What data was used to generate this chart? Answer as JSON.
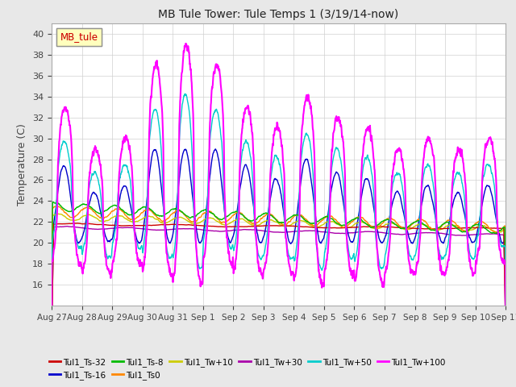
{
  "title": "MB Tule Tower: Tule Temps 1 (3/19/14-now)",
  "ylabel": "Temperature (C)",
  "ylim": [
    14,
    41
  ],
  "yticks": [
    16,
    18,
    20,
    22,
    24,
    26,
    28,
    30,
    32,
    34,
    36,
    38,
    40
  ],
  "date_labels": [
    "Aug 27",
    "Aug 28",
    "Aug 29",
    "Aug 30",
    "Aug 31",
    "Sep 1",
    "Sep 2",
    "Sep 3",
    "Sep 4",
    "Sep 5",
    "Sep 6",
    "Sep 7",
    "Sep 8",
    "Sep 9",
    "Sep 10",
    "Sep 11"
  ],
  "legend_label": "MB_tule",
  "series_order": [
    "Tul1_Ts-32",
    "Tul1_Ts-16",
    "Tul1_Ts-8",
    "Tul1_Ts0",
    "Tul1_Tw+10",
    "Tul1_Tw+30",
    "Tul1_Tw+50",
    "Tul1_Tw+100"
  ],
  "series": {
    "Tul1_Ts-32": {
      "color": "#cc0000",
      "lw": 1.0
    },
    "Tul1_Ts-16": {
      "color": "#0000cc",
      "lw": 1.0
    },
    "Tul1_Ts-8": {
      "color": "#00bb00",
      "lw": 1.0
    },
    "Tul1_Ts0": {
      "color": "#ff8800",
      "lw": 1.0
    },
    "Tul1_Tw+10": {
      "color": "#cccc00",
      "lw": 1.0
    },
    "Tul1_Tw+30": {
      "color": "#aa00aa",
      "lw": 1.0
    },
    "Tul1_Tw+50": {
      "color": "#00cccc",
      "lw": 1.0
    },
    "Tul1_Tw+100": {
      "color": "#ff00ff",
      "lw": 1.5
    }
  },
  "bgcolor": "#e8e8e8",
  "plot_bgcolor": "#ffffff",
  "grid_color": "#d0d0d0",
  "n_days": 15,
  "pts_per_day": 144,
  "legend_entries_row1": [
    "Tul1_Ts-32",
    "Tul1_Ts-16",
    "Tul1_Ts-8",
    "Tul1_Ts0",
    "Tul1_Tw+10",
    "Tul1_Tw+30"
  ],
  "legend_entries_row2": [
    "Tul1_Tw+50",
    "Tul1_Tw+100"
  ]
}
